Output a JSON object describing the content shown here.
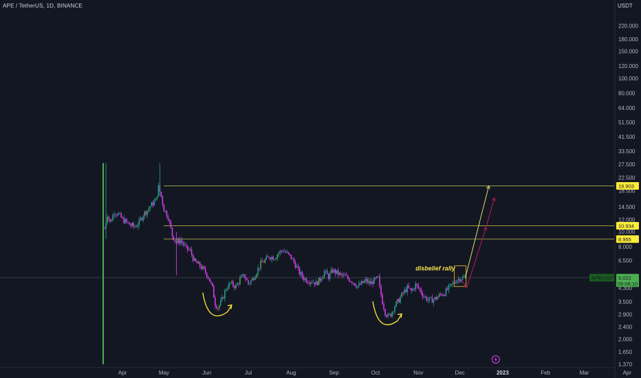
{
  "header": {
    "title": "APE / TetherUS, 1D, BINANCE",
    "currency": "USDT"
  },
  "colors": {
    "background": "#131722",
    "up": "#26a69a",
    "up_alt": "#4caf50",
    "down": "#e040fb",
    "level_line": "#9e9b46",
    "yellow": "#ffeb3b",
    "pink": "#e91e63",
    "green_badge": "#4caf50"
  },
  "chart_data": {
    "type": "candlestick",
    "symbol": "APEUSDT",
    "y_scale": "log",
    "y_range": [
      1.37,
      280
    ],
    "y_ticks": [
      "220.000",
      "180.000",
      "150.000",
      "120.000",
      "100.000",
      "80.000",
      "64.000",
      "51.500",
      "41.500",
      "33.500",
      "27.500",
      "22.500",
      "18.500",
      "14.500",
      "12.000",
      "10.000",
      "8.000",
      "6.500",
      "5.000",
      "4.300",
      "3.500",
      "2.900",
      "2.400",
      "2.000",
      "1.650",
      "1.370"
    ],
    "x_ticks": [
      {
        "label": "Apr",
        "day": 14
      },
      {
        "label": "May",
        "day": 44
      },
      {
        "label": "Jun",
        "day": 75
      },
      {
        "label": "Jul",
        "day": 105
      },
      {
        "label": "Aug",
        "day": 136
      },
      {
        "label": "Sep",
        "day": 167
      },
      {
        "label": "Oct",
        "day": 197
      },
      {
        "label": "Nov",
        "day": 228
      },
      {
        "label": "Dec",
        "day": 258
      },
      {
        "label": "2023",
        "day": 289,
        "bold": true
      },
      {
        "label": "Feb",
        "day": 320
      },
      {
        "label": "Mar",
        "day": 348
      },
      {
        "label": "Apr",
        "day": 379
      }
    ],
    "price_path": [
      [
        0,
        1.37,
        28,
        1.37
      ],
      [
        0,
        9.0,
        28,
        9.0
      ],
      [
        1,
        10.5
      ],
      [
        3,
        13.0
      ],
      [
        5,
        11.5
      ],
      [
        8,
        13.5
      ],
      [
        11,
        13.0
      ],
      [
        14,
        12.0
      ],
      [
        17,
        11.5
      ],
      [
        20,
        11.0
      ],
      [
        23,
        10.8
      ],
      [
        26,
        11.5
      ],
      [
        29,
        13.0
      ],
      [
        32,
        13.8
      ],
      [
        35,
        15.0
      ],
      [
        38,
        16.0
      ],
      [
        40,
        19.5
      ],
      [
        42,
        17.0
      ],
      [
        44,
        14.0
      ],
      [
        47,
        12.5
      ],
      [
        50,
        9.5
      ],
      [
        53,
        8.5
      ],
      [
        56,
        8.8
      ],
      [
        60,
        7.8
      ],
      [
        63,
        7.5
      ],
      [
        66,
        6.4
      ],
      [
        70,
        6.0
      ],
      [
        73,
        5.6
      ],
      [
        76,
        5.1
      ],
      [
        79,
        4.3
      ],
      [
        81,
        3.4
      ],
      [
        83,
        3.2
      ],
      [
        86,
        3.6
      ],
      [
        89,
        4.3
      ],
      [
        92,
        4.6
      ],
      [
        96,
        4.4
      ],
      [
        99,
        4.9
      ],
      [
        102,
        5.2
      ],
      [
        105,
        4.6
      ],
      [
        108,
        4.9
      ],
      [
        111,
        5.5
      ],
      [
        114,
        6.2
      ],
      [
        117,
        6.5
      ],
      [
        120,
        6.9
      ],
      [
        124,
        6.8
      ],
      [
        127,
        7.3
      ],
      [
        130,
        7.6
      ],
      [
        133,
        7.2
      ],
      [
        136,
        6.8
      ],
      [
        139,
        6.1
      ],
      [
        142,
        5.4
      ],
      [
        145,
        5.0
      ],
      [
        148,
        4.8
      ],
      [
        151,
        4.8
      ],
      [
        154,
        4.6
      ],
      [
        157,
        4.9
      ],
      [
        160,
        5.5
      ],
      [
        163,
        5.1
      ],
      [
        166,
        5.6
      ],
      [
        169,
        5.4
      ],
      [
        172,
        5.2
      ],
      [
        175,
        5.1
      ],
      [
        178,
        4.9
      ],
      [
        181,
        4.7
      ],
      [
        184,
        4.4
      ],
      [
        187,
        4.6
      ],
      [
        190,
        4.8
      ],
      [
        193,
        4.6
      ],
      [
        196,
        4.8
      ],
      [
        199,
        5.0
      ],
      [
        200,
        4.3
      ],
      [
        202,
        3.5
      ],
      [
        204,
        3.0
      ],
      [
        206,
        2.8
      ],
      [
        208,
        2.9
      ],
      [
        211,
        3.3
      ],
      [
        214,
        3.6
      ],
      [
        217,
        4.0
      ],
      [
        220,
        4.3
      ],
      [
        223,
        4.1
      ],
      [
        226,
        4.5
      ],
      [
        229,
        4.2
      ],
      [
        232,
        3.8
      ],
      [
        235,
        3.6
      ],
      [
        238,
        3.6
      ],
      [
        241,
        3.7
      ],
      [
        244,
        3.9
      ],
      [
        247,
        4.0
      ],
      [
        250,
        4.3
      ],
      [
        253,
        4.6
      ],
      [
        256,
        4.9
      ],
      [
        259,
        5.0
      ],
      [
        262,
        5.03
      ]
    ],
    "current_price": 5.022,
    "countdown": "09:08:10",
    "horizontal_levels": [
      {
        "price": 19.903,
        "label": "19.903"
      },
      {
        "price": 10.934,
        "label": "10.934"
      },
      {
        "price": 8.955,
        "label": "8.955"
      }
    ],
    "annotation": "disbelief rally",
    "projections": [
      {
        "color": "yellow",
        "from": [
          262,
          5.03
        ],
        "to": [
          279,
          19.903
        ]
      },
      {
        "color": "pink",
        "from": [
          263,
          4.3
        ],
        "to": [
          277,
          10.7
        ]
      },
      {
        "color": "pink",
        "from": [
          277,
          10.7
        ],
        "to": [
          283,
          16.6
        ]
      }
    ],
    "bottoms": [
      {
        "day": 83,
        "price": 3.2
      },
      {
        "day": 206,
        "price": 2.8
      }
    ]
  }
}
